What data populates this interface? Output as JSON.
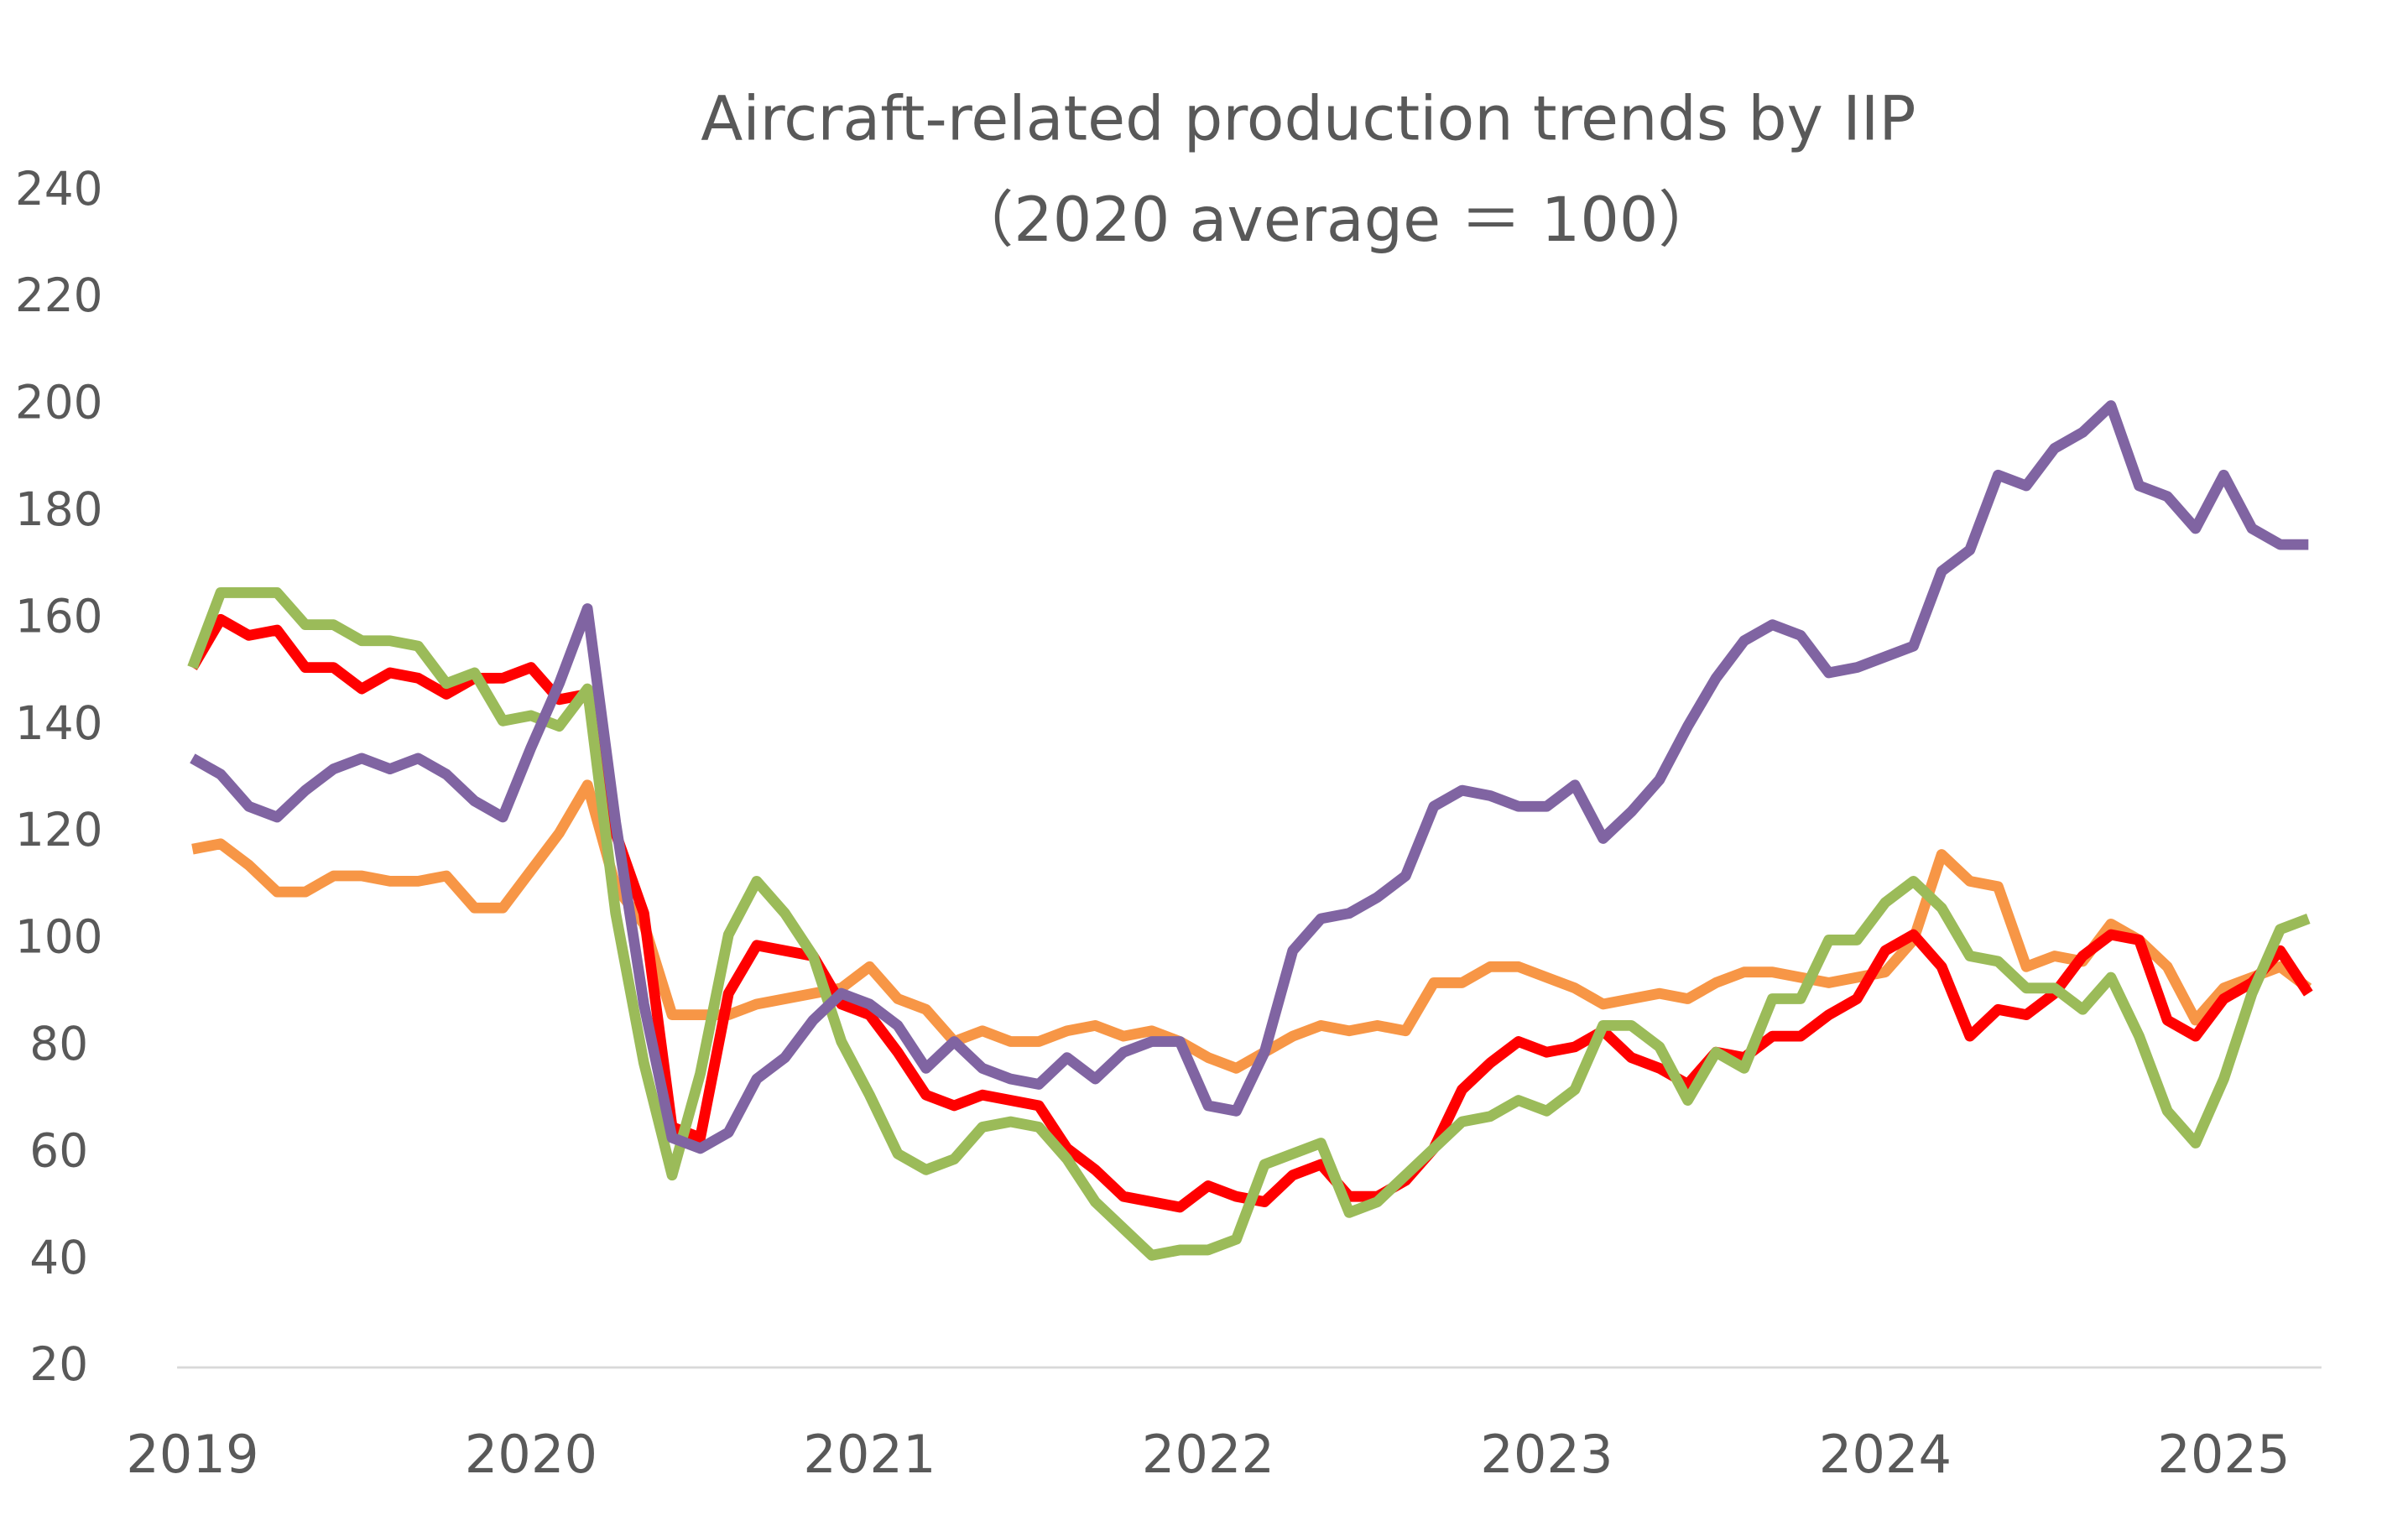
{
  "chart_data": {
    "type": "line",
    "title": "Aircraft-related production trends by IIP",
    "subtitle": "（2020 average ＝ 100）",
    "categories": [
      "2019",
      null,
      null,
      null,
      null,
      null,
      null,
      null,
      null,
      null,
      null,
      null,
      "2020",
      null,
      null,
      null,
      null,
      null,
      null,
      null,
      null,
      null,
      null,
      null,
      "2021",
      null,
      null,
      null,
      null,
      null,
      null,
      null,
      null,
      null,
      null,
      null,
      "2022",
      null,
      null,
      null,
      null,
      null,
      null,
      null,
      null,
      null,
      null,
      null,
      "2023",
      null,
      null,
      null,
      null,
      null,
      null,
      null,
      null,
      null,
      null,
      null,
      "2024",
      null,
      null,
      null,
      null,
      null,
      null,
      null,
      null,
      null,
      null,
      null,
      "2025",
      null,
      null,
      null
    ],
    "ylim": [
      20,
      240
    ],
    "yticks": [
      20,
      40,
      60,
      80,
      100,
      120,
      140,
      160,
      180,
      200,
      220,
      240
    ],
    "grid": false,
    "series": [
      {
        "color": "#f79646",
        "values": [
          117,
          118,
          114,
          109,
          109,
          112,
          112,
          111,
          111,
          112,
          106,
          106,
          113,
          120,
          129,
          110,
          103,
          86,
          86,
          86,
          88,
          89,
          90,
          91,
          95,
          89,
          87,
          81,
          83,
          81,
          81,
          83,
          84,
          82,
          83,
          81,
          78,
          76,
          79,
          82,
          84,
          83,
          84,
          83,
          92,
          92,
          95,
          95,
          93,
          91,
          88,
          89,
          90,
          89,
          92,
          94,
          94,
          93,
          92,
          93,
          94,
          100,
          116,
          111,
          110,
          95,
          97,
          96,
          103,
          100,
          95,
          85,
          91,
          93,
          95,
          91
        ]
      },
      {
        "color": "#ff0000",
        "values": [
          151,
          160,
          157,
          158,
          151,
          151,
          147,
          150,
          149,
          146,
          149,
          149,
          151,
          145,
          146,
          120,
          105,
          65,
          63,
          90,
          99,
          98,
          97,
          88,
          86,
          79,
          71,
          69,
          71,
          70,
          69,
          61,
          57,
          52,
          51,
          50,
          54,
          52,
          51,
          56,
          58,
          52,
          52,
          55,
          61,
          72,
          77,
          81,
          79,
          80,
          83,
          78,
          76,
          73,
          79,
          78,
          82,
          82,
          86,
          89,
          98,
          101,
          95,
          82,
          87,
          86,
          90,
          97,
          101,
          100,
          85,
          82,
          89,
          92,
          98,
          90
        ]
      },
      {
        "color": "#9bbb59",
        "values": [
          151,
          165,
          165,
          165,
          159,
          159,
          156,
          156,
          155,
          148,
          150,
          141,
          142,
          140,
          147,
          105,
          77,
          56,
          75,
          101,
          111,
          105,
          97,
          81,
          71,
          60,
          57,
          59,
          65,
          66,
          65,
          59,
          51,
          46,
          41,
          42,
          42,
          44,
          58,
          60,
          62,
          49,
          51,
          56,
          61,
          66,
          67,
          70,
          68,
          72,
          84,
          84,
          80,
          70,
          79,
          76,
          89,
          89,
          100,
          100,
          107,
          111,
          106,
          97,
          96,
          91,
          91,
          87,
          93,
          82,
          68,
          62,
          74,
          90,
          102,
          104
        ]
      },
      {
        "color": "#8064a2",
        "values": [
          134,
          131,
          125,
          123,
          128,
          132,
          134,
          132,
          134,
          131,
          126,
          123,
          136,
          148,
          162,
          122,
          88,
          63,
          61,
          64,
          74,
          78,
          85,
          90,
          88,
          84,
          76,
          81,
          76,
          74,
          73,
          78,
          74,
          79,
          81,
          81,
          69,
          68,
          79,
          98,
          104,
          105,
          108,
          112,
          125,
          128,
          127,
          125,
          125,
          129,
          119,
          124,
          130,
          140,
          149,
          156,
          159,
          157,
          150,
          151,
          153,
          155,
          169,
          173,
          187,
          185,
          192,
          195,
          200,
          185,
          183,
          177,
          187,
          177,
          174,
          174
        ]
      }
    ]
  }
}
